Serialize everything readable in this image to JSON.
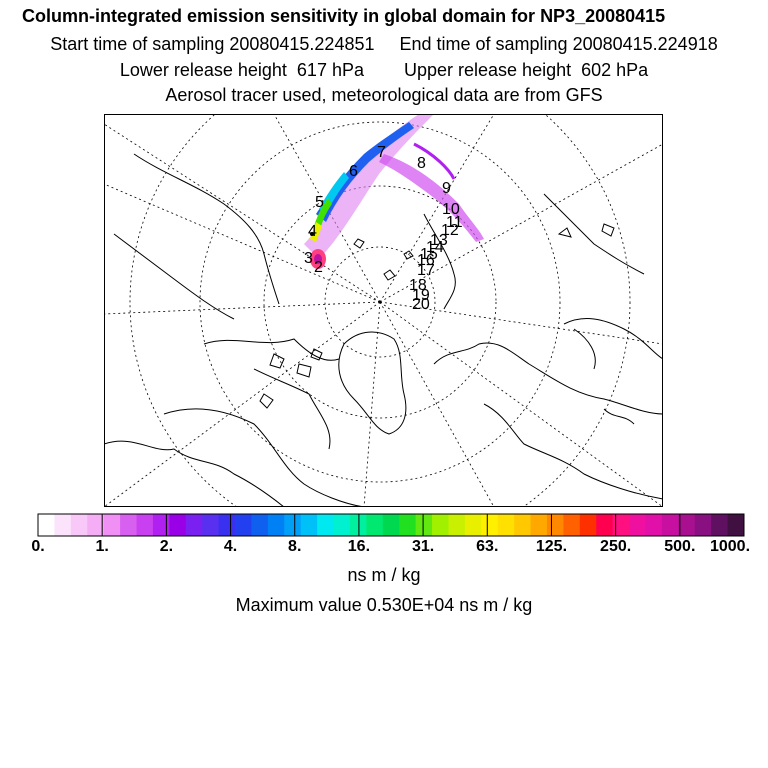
{
  "header": {
    "title": "Column-integrated emission sensitivity in global domain for NP3_20080415",
    "line2": "Start time of sampling 20080415.224851     End time of sampling 20080415.224918",
    "line3": "Lower release height  617 hPa        Upper release height  602 hPa",
    "line4": "Aerosol tracer used, meteorological data are from GFS"
  },
  "map": {
    "projection": "north-polar-stereographic",
    "day_labels": [
      "2",
      "3",
      "4",
      "5",
      "6",
      "7",
      "8",
      "9",
      "10",
      "11",
      "12",
      "13",
      "14",
      "15",
      "16",
      "17",
      "18",
      "19",
      "20"
    ]
  },
  "colorbar": {
    "tick_labels": [
      "0.",
      "1.",
      "2.",
      "4.",
      "8.",
      "16.",
      "31.",
      "63.",
      "125.",
      "250.",
      "500.",
      "1000."
    ],
    "colors": [
      "#ffffff",
      "#fbe3fb",
      "#f8c8f8",
      "#f5aef5",
      "#f090f5",
      "#d860f0",
      "#c840f0",
      "#b020f0",
      "#9a00e8",
      "#7a20f0",
      "#5a30f0",
      "#3a30f0",
      "#2240f0",
      "#1060f0",
      "#0080f5",
      "#00a0f8",
      "#00c0f8",
      "#00e8f0",
      "#00f0d0",
      "#00f0a0",
      "#00e870",
      "#00d850",
      "#20e020",
      "#60e810",
      "#a0f000",
      "#c8f000",
      "#e8f000",
      "#fff000",
      "#ffe000",
      "#ffc800",
      "#ffa800",
      "#ff8800",
      "#ff6000",
      "#ff3000",
      "#ff0050",
      "#ff1080",
      "#f010a0",
      "#e010a8",
      "#c810a0",
      "#a81090",
      "#881080",
      "#601060",
      "#401040"
    ],
    "units": "ns m / kg"
  },
  "footer": {
    "max_value": "Maximum value  0.530E+04 ns m / kg"
  }
}
